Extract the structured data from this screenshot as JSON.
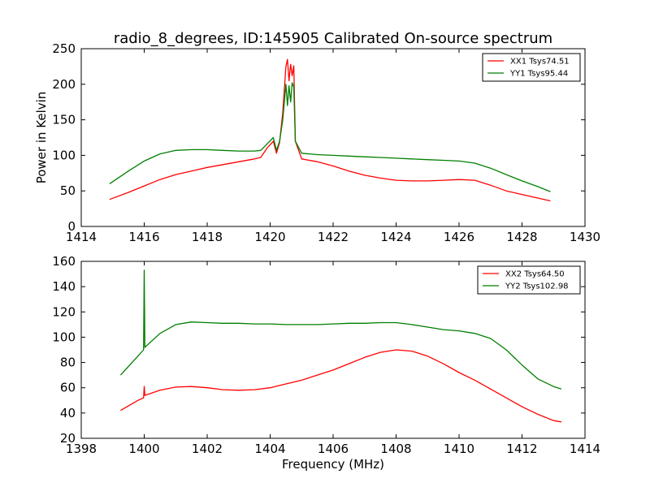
{
  "title": "radio_8_degrees, ID:145905 Calibrated On-source spectrum",
  "ylabel": "Power in Kelvin",
  "xlabel": "Frequency (MHz)",
  "colors": {
    "red": "#ff0000",
    "green": "#007f00"
  },
  "chart_data": [
    {
      "type": "line",
      "xlim": [
        1414,
        1430
      ],
      "ylim": [
        0,
        250
      ],
      "xticks": [
        "1414",
        "1416",
        "1418",
        "1420",
        "1422",
        "1424",
        "1426",
        "1428",
        "1430"
      ],
      "yticks": [
        "0",
        "50",
        "100",
        "150",
        "200",
        "250"
      ],
      "series": [
        {
          "name": "XX1 Tsys74.51",
          "color": "red",
          "x": [
            1414.9,
            1415.5,
            1416,
            1416.5,
            1417,
            1417.5,
            1418,
            1418.5,
            1419,
            1419.5,
            1419.7,
            1419.9,
            1420.1,
            1420.2,
            1420.3,
            1420.4,
            1420.5,
            1420.55,
            1420.6,
            1420.65,
            1420.7,
            1420.75,
            1420.8,
            1421,
            1421.5,
            1422,
            1422.5,
            1423,
            1423.5,
            1424,
            1424.5,
            1425,
            1425.5,
            1426,
            1426.5,
            1427,
            1427.5,
            1428,
            1428.5,
            1428.9
          ],
          "values": [
            38,
            48,
            57,
            66,
            73,
            78,
            83,
            87,
            91,
            95,
            97,
            110,
            120,
            103,
            118,
            160,
            225,
            235,
            205,
            228,
            212,
            226,
            120,
            95,
            91,
            85,
            78,
            72,
            68,
            65,
            64,
            64,
            65,
            66,
            65,
            58,
            50,
            45,
            40,
            36
          ]
        },
        {
          "name": "YY1 Tsys95.44",
          "color": "green",
          "x": [
            1414.9,
            1415.5,
            1416,
            1416.5,
            1417,
            1417.5,
            1418,
            1418.5,
            1419,
            1419.5,
            1419.7,
            1419.9,
            1420.1,
            1420.2,
            1420.3,
            1420.4,
            1420.5,
            1420.55,
            1420.6,
            1420.65,
            1420.7,
            1420.75,
            1420.8,
            1421,
            1421.5,
            1422,
            1422.5,
            1423,
            1423.5,
            1424,
            1424.5,
            1425,
            1425.5,
            1426,
            1426.5,
            1427,
            1427.5,
            1428,
            1428.5,
            1428.9
          ],
          "values": [
            60,
            78,
            92,
            102,
            107,
            108,
            108,
            107,
            106,
            106,
            107,
            116,
            125,
            107,
            120,
            150,
            200,
            170,
            198,
            175,
            202,
            196,
            120,
            103,
            101,
            100,
            99,
            98,
            97,
            96,
            95,
            94,
            93,
            92,
            89,
            82,
            73,
            64,
            56,
            49
          ]
        }
      ]
    },
    {
      "type": "line",
      "xlim": [
        1398,
        1414
      ],
      "ylim": [
        20,
        160
      ],
      "xticks": [
        "1398",
        "1400",
        "1402",
        "1404",
        "1406",
        "1408",
        "1410",
        "1412",
        "1414"
      ],
      "yticks": [
        "20",
        "40",
        "60",
        "80",
        "100",
        "120",
        "140",
        "160"
      ],
      "series": [
        {
          "name": "XX2 Tsys64.50",
          "color": "red",
          "x": [
            1399.25,
            1399.8,
            1399.98,
            1400.0,
            1400.02,
            1400.5,
            1401,
            1401.5,
            1402,
            1402.5,
            1403,
            1403.5,
            1404,
            1404.5,
            1405,
            1405.5,
            1406,
            1406.5,
            1407,
            1407.5,
            1408,
            1408.5,
            1409,
            1409.5,
            1410,
            1410.5,
            1411,
            1411.5,
            1412,
            1412.5,
            1413,
            1413.25
          ],
          "values": [
            42,
            50,
            52,
            61,
            54,
            58,
            60.5,
            61,
            60,
            58.5,
            58,
            58.5,
            60,
            63,
            66,
            70,
            74,
            79,
            84,
            88,
            90,
            89,
            85,
            79,
            72,
            66,
            59,
            52,
            45,
            39,
            34,
            33
          ]
        },
        {
          "name": "YY2 Tsys102.98",
          "color": "green",
          "x": [
            1399.25,
            1399.8,
            1399.98,
            1400.0,
            1400.02,
            1400.5,
            1401,
            1401.5,
            1402,
            1402.5,
            1403,
            1403.5,
            1404,
            1404.5,
            1405,
            1405.5,
            1406,
            1406.5,
            1407,
            1407.5,
            1408,
            1408.5,
            1409,
            1409.5,
            1410,
            1410.5,
            1411,
            1411.5,
            1412,
            1412.5,
            1413,
            1413.25
          ],
          "values": [
            70,
            85,
            90,
            153,
            92,
            103,
            110,
            112,
            111.5,
            111,
            111,
            110.5,
            110.5,
            110,
            110,
            110,
            110.5,
            111,
            111,
            111.5,
            111.5,
            110,
            108,
            106,
            105,
            103,
            99,
            90,
            78,
            67,
            61,
            59
          ]
        }
      ]
    }
  ]
}
